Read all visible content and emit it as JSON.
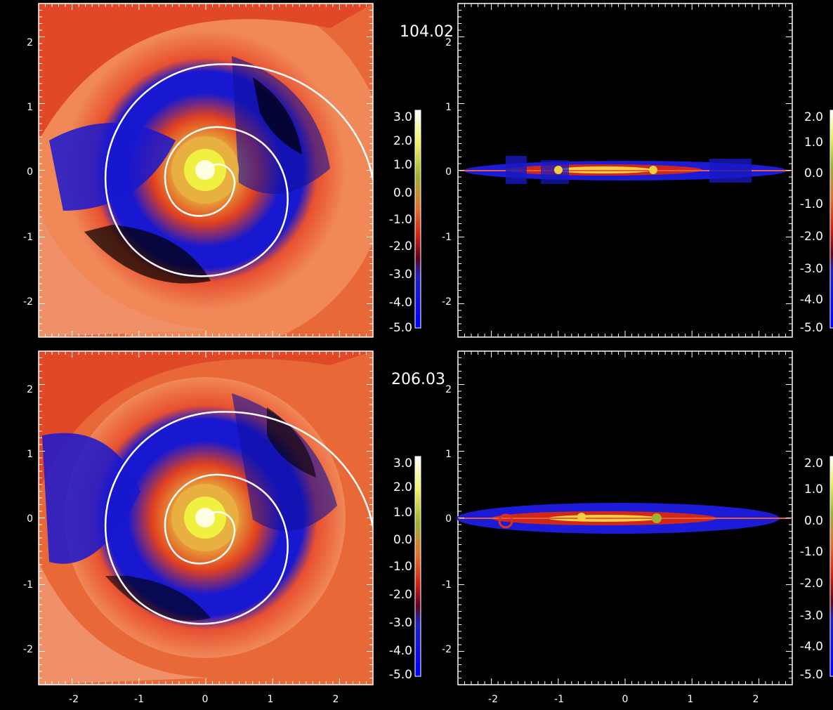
{
  "figure": {
    "panels": [
      {
        "id": "top-left",
        "time_label": "104.02",
        "xticks": [
          "-2",
          "-1",
          "0",
          "1",
          "2"
        ],
        "yticks": [
          "2",
          "1",
          "0",
          "-1",
          "-2"
        ],
        "colorbar": [
          "3.0",
          "2.0",
          "1.0",
          "0.0",
          "-1.0",
          "-2.0",
          "-3.0",
          "-4.0",
          "-5.0"
        ]
      },
      {
        "id": "top-right",
        "xticks": [
          "-2",
          "-1",
          "0",
          "1",
          "2"
        ],
        "yticks": [
          "2",
          "1",
          "0",
          "-1",
          "-2"
        ],
        "colorbar": [
          "2.0",
          "1.0",
          "0.0",
          "-1.0",
          "-2.0",
          "-3.0",
          "-4.0",
          "-5.0"
        ]
      },
      {
        "id": "bottom-left",
        "time_label": "206.03",
        "xticks": [
          "-2",
          "-1",
          "0",
          "1",
          "2"
        ],
        "yticks": [
          "2",
          "1",
          "0",
          "-1",
          "-2"
        ],
        "colorbar": [
          "3.0",
          "2.0",
          "1.0",
          "0.0",
          "-1.0",
          "-2.0",
          "-3.0",
          "-4.0",
          "-5.0"
        ]
      },
      {
        "id": "bottom-right",
        "xticks": [
          "-2",
          "-1",
          "0",
          "1",
          "2"
        ],
        "yticks": [
          "2",
          "1",
          "0",
          "-1",
          "-2"
        ],
        "colorbar": [
          "2.0",
          "1.0",
          "0.0",
          "-1.0",
          "-2.0",
          "-3.0",
          "-4.0",
          "-5.0"
        ]
      }
    ],
    "colors": {
      "background": "#000000",
      "disk_outer": "#f07050",
      "disk_mid": "#e03020",
      "low_density": "#2020f0",
      "high_density": "#f0f040",
      "core": "#ffffe0",
      "spiral_line": "#ffffff"
    }
  }
}
